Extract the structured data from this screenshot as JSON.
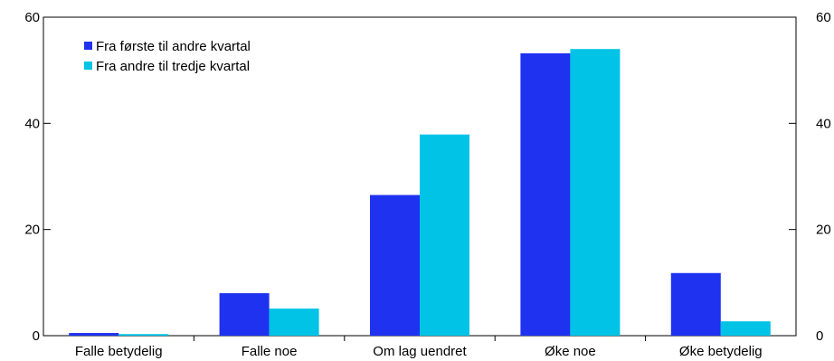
{
  "chart_data": {
    "type": "bar",
    "categories": [
      "Falle betydelig",
      "Falle noe",
      "Om lag uendret",
      "Øke noe",
      "Øke betydelig"
    ],
    "series": [
      {
        "name": "Fra første til andre kvartal",
        "color": "#1e32f0",
        "values": [
          0.5,
          8.0,
          26.5,
          53.2,
          11.8
        ]
      },
      {
        "name": "Fra andre til tredje kvartal",
        "color": "#00c3e6",
        "values": [
          0.3,
          5.1,
          37.9,
          54.0,
          2.7
        ]
      }
    ],
    "y_ticks": [
      0,
      20,
      40,
      60
    ],
    "ylim": [
      0,
      60
    ],
    "y_axis_left_labels": [
      "0",
      "20",
      "40",
      "60"
    ],
    "y_axis_right_labels": [
      "0",
      "20",
      "40",
      "60"
    ],
    "legend_position": "top-left",
    "grid": false
  }
}
